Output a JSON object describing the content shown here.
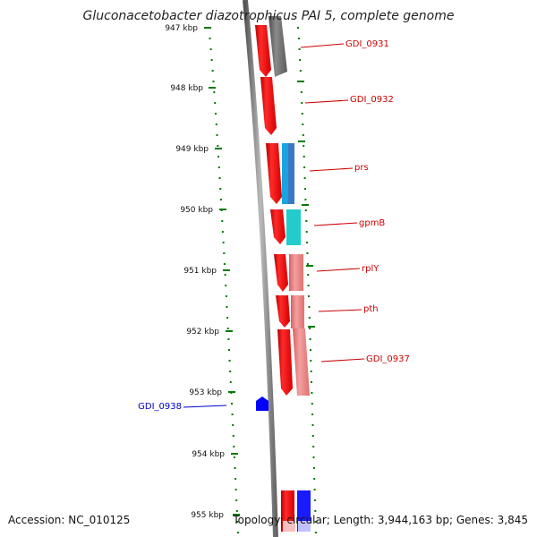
{
  "title": "Gluconacetobacter diazotrophicus PAI 5, complete genome",
  "footer": {
    "accession": "Accession: NC_010125",
    "summary": "Topology: circular; Length: 3,944,163 bp; Genes: 3,845"
  },
  "ticks": [
    {
      "label": "947 kbp"
    },
    {
      "label": "948 kbp"
    },
    {
      "label": "949 kbp"
    },
    {
      "label": "950 kbp"
    },
    {
      "label": "951 kbp"
    },
    {
      "label": "952 kbp"
    },
    {
      "label": "953 kbp"
    },
    {
      "label": "954 kbp"
    },
    {
      "label": "955 kbp"
    }
  ],
  "gene_labels": [
    {
      "label": "GDI_0931",
      "color": "#cc0000"
    },
    {
      "label": "GDI_0932",
      "color": "#cc0000"
    },
    {
      "label": "prs",
      "color": "#cc0000"
    },
    {
      "label": "gpmB",
      "color": "#cc0000"
    },
    {
      "label": "rplY",
      "color": "#cc0000"
    },
    {
      "label": "pth",
      "color": "#cc0000"
    },
    {
      "label": "GDI_0937",
      "color": "#cc0000"
    },
    {
      "label": "GDI_0938",
      "color": "#0000cc"
    }
  ],
  "colors": {
    "gene_forward": "#ff0000",
    "gene_reverse": "#0000ff",
    "cds_track": "#e87a7a",
    "prs_cog": "#1aa3e0",
    "prs_cog2": "#3b78c4",
    "gpmB_cog": "#22cccc",
    "backbone": "#777777",
    "dots": "#007a00"
  }
}
